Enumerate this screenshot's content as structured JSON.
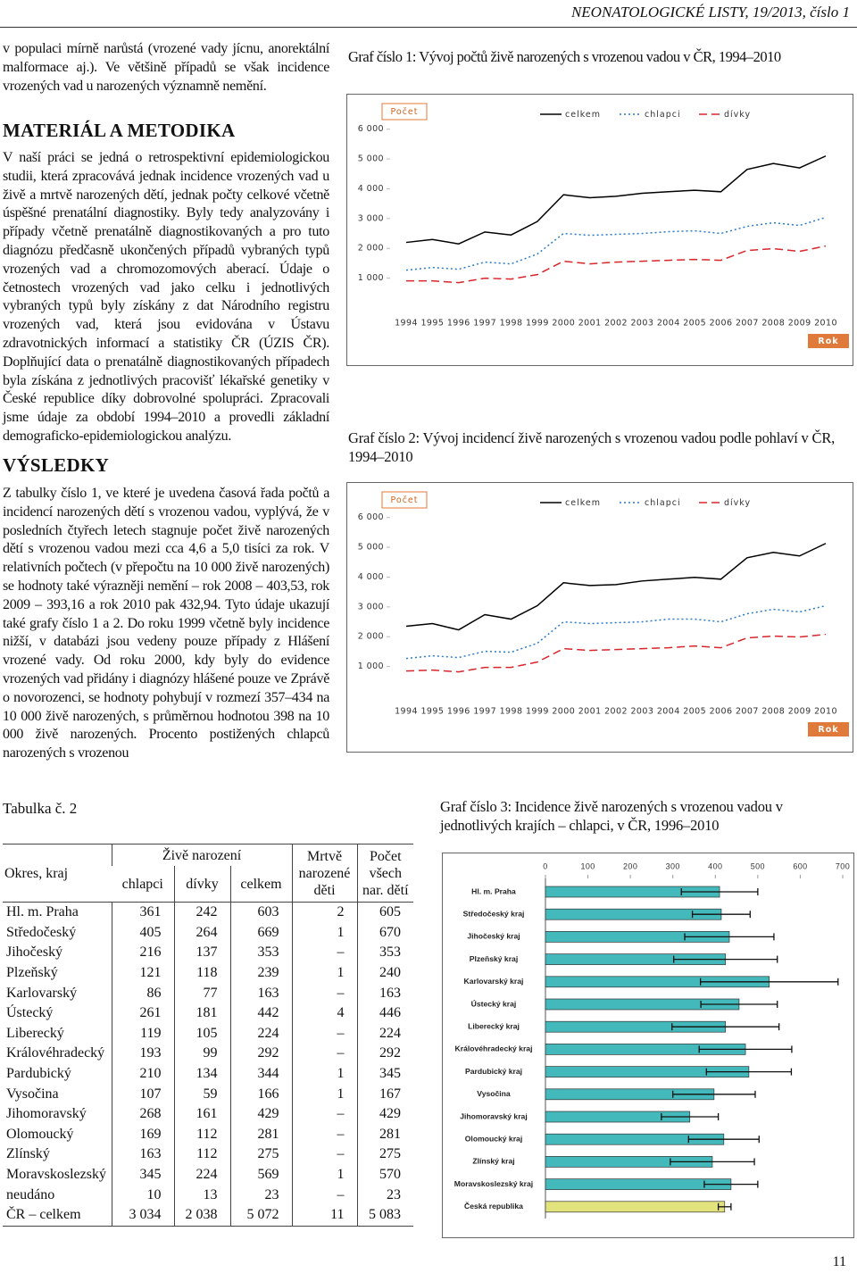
{
  "header": {
    "journal": "NEONATOLOGICKÉ LISTY, 19/2013, číslo 1"
  },
  "article": {
    "intro": "v populaci mírně narůstá (vrozené vady jícnu, anorektální malformace aj.). Ve většině případů se však incidence vrozených vad u narozených významně nemění.",
    "sections": [
      {
        "heading": "MATERIÁL A METODIKA",
        "text": "V naší práci se jedná o retrospektivní epidemiologickou studii, která zpracovává jednak incidence vrozených vad u živě a mrtvě narozených dětí, jednak počty celkové včetně úspěšné prenatální diagnostiky. Byly tedy analyzovány i případy včetně prenatálně diagnostikovaných a pro tuto diagnózu předčasně ukončených případů vybraných typů vrozených vad a chromozomových aberací. Údaje o četnostech vrozených vad jako celku i jednotlivých vybraných typů byly získány z dat Národního registru vrozených vad, která jsou evidována v Ústavu zdravotnických informací a statistiky ČR (ÚZIS ČR). Doplňující data o prenatálně diagnostikovaných případech byla získána z jednotlivých pracovišť lékařské genetiky v České republice díky dobrovolné spolupráci. Zpracovali jsme údaje za období 1994–2010 a provedli základní demograficko-epidemiologickou analýzu."
      },
      {
        "heading": "VÝSLEDKY",
        "text": "Z tabulky číslo 1, ve které je uvedena časová řada počtů a incidencí narozených dětí s vrozenou vadou, vyplývá, že v posledních čtyřech letech stagnuje počet živě narozených dětí s vrozenou vadou mezi cca 4,6 a 5,0 tisíci za rok. V relativních počtech (v přepočtu na 10 000 živě narozených) se hodnoty také výrazněji nemění – rok 2008 – 403,53, rok 2009 – 393,16 a rok 2010 pak 432,94. Tyto údaje ukazují také grafy číslo 1 a 2. Do roku 1999 včetně byly incidence nižší, v databázi jsou vedeny pouze případy z Hlášení vrozené vady. Od roku 2000, kdy byly do evidence vrozených vad přidány i diagnózy hlášené pouze ve Zprávě o novorozenci, se hodnoty pohybují v rozmezí 357–434 na 10 000 živě narozených, s průměrnou hodnotou 398 na 10 000 živě narozených. Procento postižených chlapců narozených s vrozenou"
      }
    ]
  },
  "chart_data": [
    {
      "type": "line",
      "title": "Graf číslo 1: Vývoj počtů živě narozených s vrozenou vadou v ČR, 1994–2010",
      "ylabel": "Počet",
      "xlabel": "Rok",
      "categories": [
        "1994",
        "1995",
        "1996",
        "1997",
        "1998",
        "1999",
        "2000",
        "2001",
        "2002",
        "2003",
        "2004",
        "2005",
        "2006",
        "2007",
        "2008",
        "2009",
        "2010"
      ],
      "series": [
        {
          "name": "celkem",
          "color": "#000000",
          "style": "solid",
          "values": [
            2200,
            2300,
            2150,
            2550,
            2450,
            2900,
            3800,
            3700,
            3750,
            3850,
            3900,
            3950,
            3900,
            4650,
            4850,
            4700,
            5100
          ]
        },
        {
          "name": "chlapci",
          "color": "#2a7ac8",
          "style": "dotted",
          "values": [
            1270,
            1360,
            1300,
            1540,
            1480,
            1810,
            2500,
            2440,
            2470,
            2500,
            2560,
            2590,
            2500,
            2740,
            2860,
            2770,
            3040
          ]
        },
        {
          "name": "dívky",
          "color": "#d8262c",
          "style": "dashed",
          "values": [
            910,
            910,
            850,
            1000,
            970,
            1120,
            1570,
            1480,
            1540,
            1570,
            1600,
            1630,
            1600,
            1930,
            1990,
            1900,
            2080
          ]
        }
      ],
      "ylim": [
        0,
        6800
      ],
      "yticks": [
        {
          "value": 1000,
          "label": "1 000"
        },
        {
          "value": 2000,
          "label": "2 000"
        },
        {
          "value": 3000,
          "label": "3 000"
        },
        {
          "value": 4000,
          "label": "4 000"
        },
        {
          "value": 5000,
          "label": "5 000"
        },
        {
          "value": 6000,
          "label": "6 000"
        }
      ]
    },
    {
      "type": "line",
      "title": "Graf číslo 2: Vývoj incidencí živě narozených s vrozenou vadou podle pohlaví v ČR, 1994–2010",
      "ylabel": "Počet",
      "xlabel": "Rok",
      "categories": [
        "1994",
        "1995",
        "1996",
        "1997",
        "1998",
        "1999",
        "2000",
        "2001",
        "2002",
        "2003",
        "2004",
        "2005",
        "2006",
        "2007",
        "2008",
        "2009",
        "2010"
      ],
      "series": [
        {
          "name": "celkem",
          "color": "#000000",
          "style": "solid",
          "values": [
            2350,
            2440,
            2230,
            2740,
            2590,
            3040,
            3810,
            3720,
            3750,
            3870,
            3930,
            3990,
            3930,
            4650,
            4830,
            4710,
            5130
          ]
        },
        {
          "name": "chlapci",
          "color": "#2a7ac8",
          "style": "dotted",
          "values": [
            1270,
            1360,
            1300,
            1510,
            1480,
            1780,
            2500,
            2440,
            2470,
            2500,
            2590,
            2590,
            2500,
            2770,
            2920,
            2830,
            3040
          ]
        },
        {
          "name": "dívky",
          "color": "#d8262c",
          "style": "dashed",
          "values": [
            850,
            880,
            820,
            970,
            970,
            1150,
            1600,
            1540,
            1570,
            1600,
            1630,
            1690,
            1630,
            1960,
            2020,
            1990,
            2080
          ]
        }
      ],
      "ylim": [
        0,
        6800
      ],
      "yticks": [
        {
          "value": 1000,
          "label": "1 000"
        },
        {
          "value": 2000,
          "label": "2 000"
        },
        {
          "value": 3000,
          "label": "3 000"
        },
        {
          "value": 4000,
          "label": "4 000"
        },
        {
          "value": 5000,
          "label": "5 000"
        },
        {
          "value": 6000,
          "label": "6 000"
        }
      ]
    },
    {
      "type": "bar",
      "orientation": "horizontal",
      "title": "Graf číslo 3: Incidence živě narozených s vrozenou vadou v jednotlivých krajích – chlapci, v ČR, 1996–2010",
      "categories": [
        "Hl. m. Praha",
        "Středočeský kraj",
        "Jihočeský kraj",
        "Plzeňský kraj",
        "Karlovarský kraj",
        "Ústecký kraj",
        "Liberecký kraj",
        "Královéhradecký kraj",
        "Pardubický kraj",
        "Vysočina",
        "Jihomoravský kraj",
        "Olomoucký kraj",
        "Zlínský kraj",
        "Moravskoslezský kraj",
        "Česká republika"
      ],
      "values": [
        410,
        414,
        433,
        424,
        527,
        456,
        424,
        471,
        479,
        397,
        340,
        420,
        393,
        437,
        422
      ],
      "errors": [
        90,
        68,
        105,
        122,
        162,
        90,
        126,
        109,
        100,
        97,
        67,
        83,
        99,
        63,
        15
      ],
      "colors": [
        "#43b9bb",
        "#43b9bb",
        "#43b9bb",
        "#43b9bb",
        "#43b9bb",
        "#43b9bb",
        "#43b9bb",
        "#43b9bb",
        "#43b9bb",
        "#43b9bb",
        "#43b9bb",
        "#43b9bb",
        "#43b9bb",
        "#43b9bb",
        "#e3e37e"
      ],
      "xlim": [
        0,
        700
      ],
      "xticks": [
        0,
        100,
        200,
        300,
        400,
        500,
        600,
        700
      ]
    }
  ],
  "table": {
    "caption": "Tabulka č. 2",
    "header": {
      "region": "Okres, kraj",
      "live": "Živě narození",
      "boys": "chlapci",
      "girls": "dívky",
      "total": "celkem",
      "stillborn": "Mrtvě narozené děti",
      "all": "Počet všech nar. dětí"
    },
    "rows": [
      [
        "Hl. m. Praha",
        361,
        242,
        603,
        2,
        605
      ],
      [
        "Středočeský",
        405,
        264,
        669,
        1,
        670
      ],
      [
        "Jihočeský",
        216,
        137,
        353,
        "–",
        353
      ],
      [
        "Plzeňský",
        121,
        118,
        239,
        1,
        240
      ],
      [
        "Karlovarský",
        86,
        77,
        163,
        "–",
        163
      ],
      [
        "Ústecký",
        261,
        181,
        442,
        4,
        446
      ],
      [
        "Liberecký",
        119,
        105,
        224,
        "–",
        224
      ],
      [
        "Královéhradecký",
        193,
        99,
        292,
        "–",
        292
      ],
      [
        "Pardubický",
        210,
        134,
        344,
        1,
        345
      ],
      [
        "Vysočina",
        107,
        59,
        166,
        1,
        167
      ],
      [
        "Jihomoravský",
        268,
        161,
        429,
        "–",
        429
      ],
      [
        "Olomoucký",
        169,
        112,
        281,
        "–",
        281
      ],
      [
        "Zlínský",
        163,
        112,
        275,
        "–",
        275
      ],
      [
        "Moravskoslezský",
        345,
        224,
        569,
        1,
        570
      ],
      [
        "neudáno",
        10,
        13,
        23,
        "–",
        23
      ],
      [
        "ČR – celkem",
        "3 034",
        "2 038",
        "5 072",
        11,
        "5 083"
      ]
    ]
  },
  "page_number": "11"
}
